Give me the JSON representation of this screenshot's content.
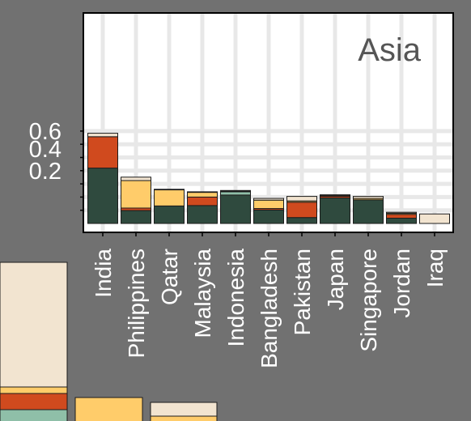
{
  "chart_data": {
    "type": "bar",
    "stacked": true,
    "y_scale": "sqrt",
    "panel_label": "Asia",
    "categories": [
      "India",
      "Philippines",
      "Qatar",
      "Malaysia",
      "Indonesia",
      "Bangladesh",
      "Pakistan",
      "Japan",
      "Singapore",
      "Jordan",
      "Iraq"
    ],
    "y_ticks": [
      0.2,
      0.4,
      0.6
    ],
    "y_tick_labels": [
      "0.2",
      "0.4",
      "0.6"
    ],
    "ylim": [
      0,
      0.66
    ],
    "grid": true,
    "series": [
      {
        "color": "#2f4a3e",
        "values": [
          0.22,
          0.012,
          0.022,
          0.023,
          0.058,
          0.013,
          0.0025,
          0.047,
          0.04,
          0.002,
          0.0
        ]
      },
      {
        "color": "#8fbfa8",
        "values": [
          0.0,
          0.0,
          0.0,
          0.0,
          0.014,
          0.0,
          0.0,
          0.0,
          0.0,
          0.0,
          0.0
        ]
      },
      {
        "color": "#d04a1e",
        "values": [
          0.32,
          0.005,
          0.0,
          0.027,
          0.005,
          0.003,
          0.03,
          0.006,
          0.0,
          0.004,
          0.0
        ]
      },
      {
        "color": "#ffcc6a",
        "values": [
          0.0,
          0.115,
          0.06,
          0.021,
          0.0,
          0.023,
          0.004,
          0.004,
          0.005,
          0.0015,
          0.0
        ]
      },
      {
        "color": "#f2e4d0",
        "values": [
          0.044,
          0.022,
          0.002,
          0.001,
          0.001,
          0.006,
          0.016,
          0.002,
          0.0075,
          0.0015,
          0.0065
        ]
      }
    ],
    "cropped_panel_colors": [
      "#f2e4d0",
      "#ffcc6a",
      "#d04a1e",
      "#8fbfa8"
    ]
  }
}
